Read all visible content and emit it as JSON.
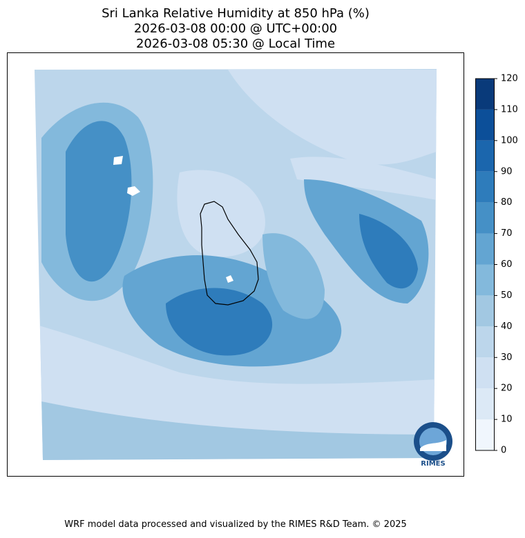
{
  "title": [
    "Sri Lanka Relative Humidity at 850 hPa (%)",
    "2026-03-08 00:00 @ UTC+00:00",
    "2026-03-08 05:30 @ Local Time"
  ],
  "colorbar": {
    "lim": [
      0,
      120
    ],
    "ticks": [
      0,
      10,
      20,
      30,
      40,
      50,
      60,
      70,
      80,
      90,
      100,
      110,
      120
    ],
    "colors": [
      "#f0f6fd",
      "#dce9f6",
      "#cfe0f2",
      "#bcd6eb",
      "#a2c8e2",
      "#83b9dc",
      "#63a5d2",
      "#4590c6",
      "#2e7cbb",
      "#1b66ad",
      "#0c4f99",
      "#093a7a"
    ]
  },
  "logo": "RIMES",
  "footer": "WRF model data processed and visualized by the RIMES R&D Team. © 2025"
}
